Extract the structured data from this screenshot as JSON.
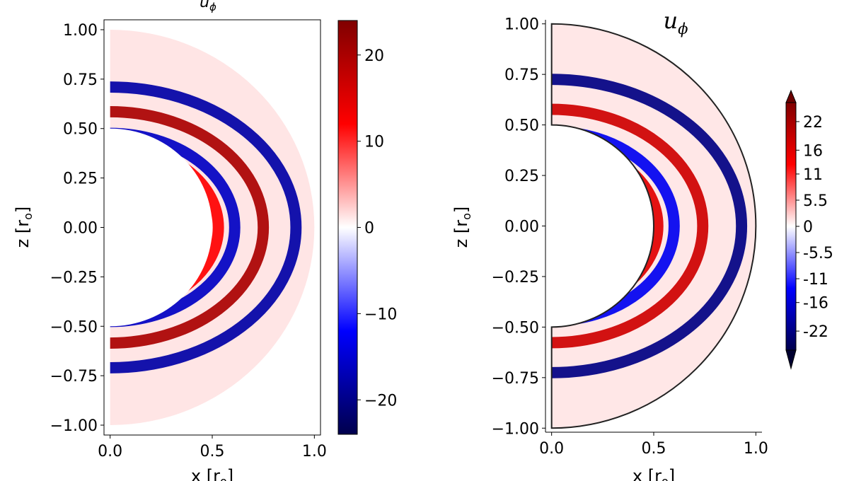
{
  "chart_data": [
    {
      "type": "heatmap",
      "title": "u_φ",
      "title_main": "u",
      "title_sub": "ϕ",
      "xlabel": "x [r_o]",
      "xlabel_main": "x [r",
      "xlabel_sub": "o",
      "xlabel_tail": "]",
      "ylabel": "z [r_o]",
      "ylabel_main": "z [r",
      "ylabel_sub": "o",
      "ylabel_tail": "]",
      "xlim": [
        -0.03,
        1.03
      ],
      "ylim": [
        -1.05,
        1.05
      ],
      "x_ticks": [
        0.0,
        0.5,
        1.0
      ],
      "x_tick_labels": [
        "0.0",
        "0.5",
        "1.0"
      ],
      "y_ticks": [
        1.0,
        0.75,
        0.5,
        0.25,
        0.0,
        -0.25,
        -0.5,
        -0.75,
        -1.0
      ],
      "y_tick_labels": [
        "1.00",
        "0.75",
        "0.50",
        "0.25",
        "0.00",
        "−0.25",
        "−0.50",
        "−0.75",
        "−1.00"
      ],
      "domain": {
        "inner_radius": 0.5,
        "outer_radius": 1.0
      },
      "field_bands": [
        {
          "radius": 0.53,
          "value": 12
        },
        {
          "radius": 0.61,
          "value": -16
        },
        {
          "radius": 0.75,
          "value": 20
        },
        {
          "radius": 0.91,
          "value": -18
        }
      ],
      "colorbar": {
        "range": [
          -24,
          24
        ],
        "ticks": [
          20,
          10,
          0,
          -10,
          -20
        ],
        "tick_labels": [
          "20",
          "10",
          "0",
          "−10",
          "−20"
        ],
        "extend": "neither"
      }
    },
    {
      "type": "heatmap",
      "title": "u_ϕ",
      "title_main": "u",
      "title_sub": "ϕ",
      "xlabel": "x [r_o]",
      "xlabel_main": "x [r",
      "xlabel_sub": "o",
      "xlabel_tail": "]",
      "ylabel": "z [r_o]",
      "ylabel_main": "z [r",
      "ylabel_sub": "o",
      "ylabel_tail": "]",
      "xlim": [
        -0.03,
        1.03
      ],
      "ylim": [
        -1.02,
        1.02
      ],
      "x_ticks": [
        0.0,
        0.5,
        1.0
      ],
      "x_tick_labels": [
        "0.0",
        "0.5",
        "1.0"
      ],
      "y_ticks": [
        1.0,
        0.75,
        0.5,
        0.25,
        0.0,
        -0.25,
        -0.5,
        -0.75,
        -1.0
      ],
      "y_tick_labels": [
        "1.00",
        "0.75",
        "0.50",
        "0.25",
        "0.00",
        "−0.25",
        "−0.50",
        "−0.75",
        "−1.00"
      ],
      "domain": {
        "inner_radius": 0.5,
        "outer_radius": 1.0
      },
      "field_bands": [
        {
          "radius": 0.52,
          "value": 16
        },
        {
          "radius": 0.6,
          "value": -14
        },
        {
          "radius": 0.74,
          "value": 18
        },
        {
          "radius": 0.93,
          "value": -22
        }
      ],
      "colorbar": {
        "range": [
          -26,
          26
        ],
        "ticks": [
          22,
          16,
          11,
          5.5,
          0,
          -5.5,
          -11,
          -16,
          -22
        ],
        "tick_labels": [
          "22",
          "16",
          "11",
          "5.5",
          "0",
          "-5.5",
          "-11",
          "-16",
          "-22"
        ],
        "extend": "both"
      }
    }
  ]
}
